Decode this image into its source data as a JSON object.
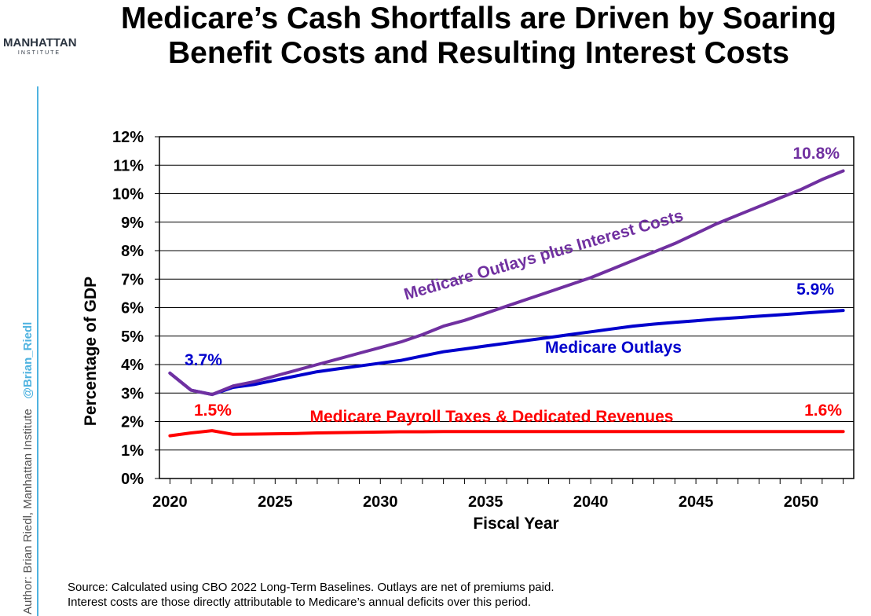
{
  "header": {
    "logo_name": "MANHATTAN",
    "logo_sub": "INSTITUTE",
    "title_line1": "Medicare’s Cash Shortfalls are Driven by Soaring",
    "title_line2": "Benefit Costs and Resulting Interest Costs"
  },
  "sidebar": {
    "author": "Author: Brian Riedl, Manhattan Institute",
    "handle": "@Brian_Riedl"
  },
  "footer": {
    "source_line1": "Source: Calculated using CBO 2022 Long-Term Baselines. Outlays are net of premiums paid.",
    "source_line2": "Interest costs are those directly attributable to Medicare’s annual deficits over this period."
  },
  "chart_data": {
    "type": "line",
    "title": "Medicare’s Cash Shortfalls are Driven by Soaring Benefit Costs and Resulting Interest Costs",
    "xlabel": "Fiscal Year",
    "ylabel": "Percentage of GDP",
    "xlim": [
      2019.5,
      2052.5
    ],
    "ylim": [
      0,
      12
    ],
    "x_ticks": [
      2020,
      2025,
      2030,
      2035,
      2040,
      2045,
      2050
    ],
    "y_ticks": [
      "0%",
      "1%",
      "2%",
      "3%",
      "4%",
      "5%",
      "6%",
      "7%",
      "8%",
      "9%",
      "10%",
      "11%",
      "12%"
    ],
    "grid": "horizontal",
    "x": [
      2020,
      2021,
      2022,
      2023,
      2024,
      2025,
      2026,
      2027,
      2028,
      2029,
      2030,
      2031,
      2032,
      2033,
      2034,
      2035,
      2036,
      2037,
      2038,
      2039,
      2040,
      2041,
      2042,
      2043,
      2044,
      2045,
      2046,
      2047,
      2048,
      2049,
      2050,
      2051,
      2052
    ],
    "series": [
      {
        "name": "Medicare Outlays plus Interest Costs",
        "color": "#7030a0",
        "values": [
          3.7,
          3.1,
          2.95,
          3.25,
          3.4,
          3.6,
          3.8,
          4.0,
          4.2,
          4.4,
          4.6,
          4.8,
          5.05,
          5.35,
          5.55,
          5.8,
          6.05,
          6.3,
          6.55,
          6.8,
          7.05,
          7.35,
          7.65,
          7.95,
          8.25,
          8.6,
          8.95,
          9.25,
          9.55,
          9.85,
          10.15,
          10.5,
          10.8
        ]
      },
      {
        "name": "Medicare Outlays",
        "color": "#0000cc",
        "values": [
          3.7,
          3.1,
          2.95,
          3.2,
          3.3,
          3.45,
          3.6,
          3.75,
          3.85,
          3.95,
          4.05,
          4.15,
          4.3,
          4.45,
          4.55,
          4.65,
          4.75,
          4.85,
          4.95,
          5.05,
          5.15,
          5.25,
          5.35,
          5.42,
          5.48,
          5.54,
          5.6,
          5.65,
          5.7,
          5.75,
          5.8,
          5.85,
          5.9
        ]
      },
      {
        "name": "Medicare Payroll Taxes & Dedicated Revenues",
        "color": "#ff0000",
        "values": [
          1.5,
          1.6,
          1.68,
          1.55,
          1.56,
          1.57,
          1.58,
          1.6,
          1.61,
          1.62,
          1.63,
          1.64,
          1.64,
          1.65,
          1.65,
          1.65,
          1.65,
          1.65,
          1.65,
          1.65,
          1.65,
          1.65,
          1.65,
          1.65,
          1.65,
          1.65,
          1.65,
          1.65,
          1.65,
          1.65,
          1.65,
          1.65,
          1.65
        ]
      }
    ],
    "annotations": [
      {
        "text": "10.8%",
        "color": "#7030a0"
      },
      {
        "text": "5.9%",
        "color": "#0000cc"
      },
      {
        "text": "3.7%",
        "color": "#0000cc"
      },
      {
        "text": "1.5%",
        "color": "#ff0000"
      },
      {
        "text": "1.6%",
        "color": "#ff0000"
      }
    ]
  }
}
